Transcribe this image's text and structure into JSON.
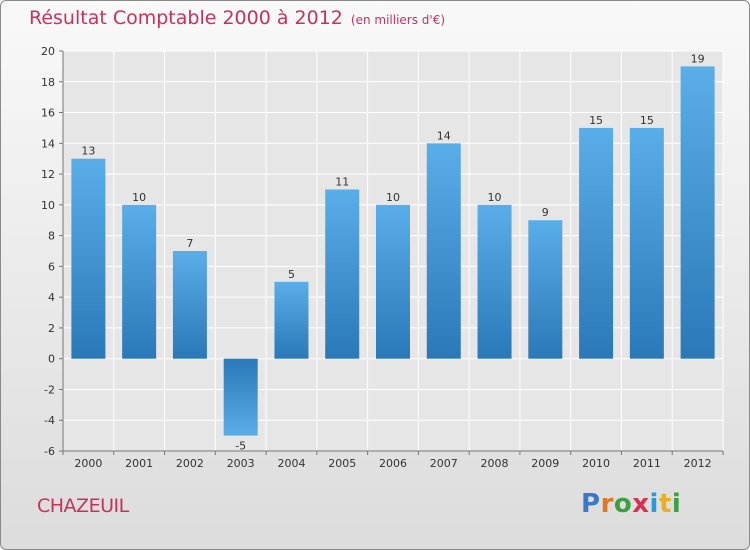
{
  "title": "Résultat Comptable 2000 à 2012",
  "unit": "(en milliers d'€)",
  "commune": "CHAZEUIL",
  "logo": [
    "P",
    "r",
    "o",
    "x",
    "i",
    "t",
    "i"
  ],
  "colors": {
    "title": "#c8325a",
    "bar_light": "#5aaee8",
    "bar_dark": "#2a78b8",
    "logo": [
      "#3b78c8",
      "#e07820",
      "#3ca040",
      "#d83050",
      "#2b9bd8",
      "#e8b020",
      "#3ca040"
    ]
  },
  "chart_data": {
    "type": "bar",
    "title": "Résultat Comptable 2000 à 2012",
    "xlabel": "",
    "ylabel": "(en milliers d'€)",
    "categories": [
      "2000",
      "2001",
      "2002",
      "2003",
      "2004",
      "2005",
      "2006",
      "2007",
      "2008",
      "2009",
      "2010",
      "2011",
      "2012"
    ],
    "values": [
      13,
      10,
      7,
      -5,
      5,
      11,
      10,
      14,
      10,
      9,
      15,
      15,
      19
    ],
    "ylim": [
      -6,
      20
    ],
    "yticks": [
      -6,
      -4,
      -2,
      0,
      2,
      4,
      6,
      8,
      10,
      12,
      14,
      16,
      18,
      20
    ],
    "grid": true
  }
}
